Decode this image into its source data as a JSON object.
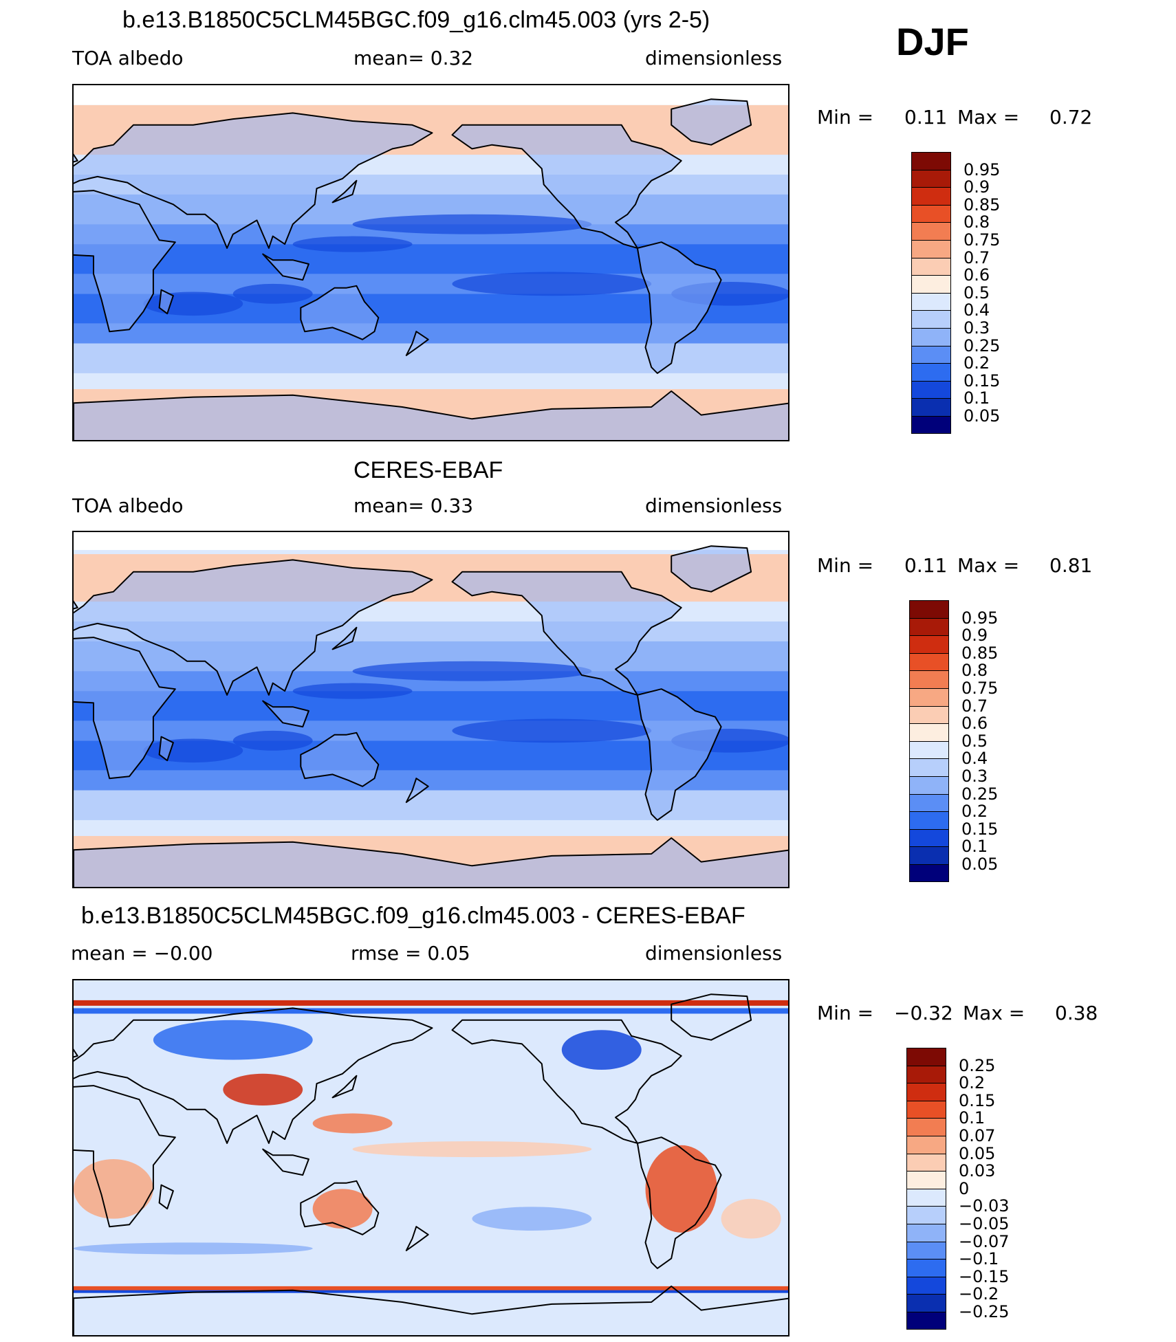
{
  "season": "DJF",
  "colors": {
    "land_outline": "#000000",
    "scale_full": [
      "#00007a",
      "#0a2fb0",
      "#1448dc",
      "#2d6cf0",
      "#5b8ef5",
      "#8fb3f8",
      "#b7cffb",
      "#dce9fd",
      "#fdeee0",
      "#fbcdb4",
      "#f7a883",
      "#f27d52",
      "#e85026",
      "#cf2d10",
      "#a81a08",
      "#7d0a04"
    ]
  },
  "panels": [
    {
      "title": "b.e13.B1850C5CLM45BGC.f09_g16.clm45.003 (yrs 2-5)",
      "left_text": "TOA  albedo",
      "center_text": "mean=     0.32",
      "right_text": "dimensionless",
      "min_label": "Min  =",
      "min_value": "0.11",
      "max_label": "Max  =",
      "max_value": "0.72",
      "map_kind": "model",
      "colorbar": {
        "labels": [
          "0.95",
          "0.9",
          "0.85",
          "0.8",
          "0.75",
          "0.7",
          "0.6",
          "0.5",
          "0.4",
          "0.3",
          "0.25",
          "0.2",
          "0.15",
          "0.1",
          "0.05"
        ],
        "colors": [
          "#7d0a04",
          "#a81a08",
          "#cf2d10",
          "#e85026",
          "#f27d52",
          "#f7a883",
          "#fbcdb4",
          "#fdeee0",
          "#dce9fd",
          "#b7cffb",
          "#8fb3f8",
          "#5b8ef5",
          "#2d6cf0",
          "#1448dc",
          "#0a2fb0",
          "#00007a"
        ]
      }
    },
    {
      "title": "CERES-EBAF",
      "left_text": "TOA  albedo",
      "center_text": "mean=     0.33",
      "right_text": "dimensionless",
      "min_label": "Min  =",
      "min_value": "0.11",
      "max_label": "Max  =",
      "max_value": "0.81",
      "map_kind": "obs",
      "colorbar": {
        "labels": [
          "0.95",
          "0.9",
          "0.85",
          "0.8",
          "0.75",
          "0.7",
          "0.6",
          "0.5",
          "0.4",
          "0.3",
          "0.25",
          "0.2",
          "0.15",
          "0.1",
          "0.05"
        ],
        "colors": [
          "#7d0a04",
          "#a81a08",
          "#cf2d10",
          "#e85026",
          "#f27d52",
          "#f7a883",
          "#fbcdb4",
          "#fdeee0",
          "#dce9fd",
          "#b7cffb",
          "#8fb3f8",
          "#5b8ef5",
          "#2d6cf0",
          "#1448dc",
          "#0a2fb0",
          "#00007a"
        ]
      }
    },
    {
      "title": "b.e13.B1850C5CLM45BGC.f09_g16.clm45.003 - CERES-EBAF",
      "left_text": "mean  =   −0.00",
      "center_text": "rmse  =     0.05",
      "right_text": "dimensionless",
      "min_label": "Min  =",
      "min_value": "−0.32",
      "max_label": "Max  =",
      "max_value": "0.38",
      "map_kind": "diff",
      "colorbar": {
        "labels": [
          "0.25",
          "0.2",
          "0.15",
          "0.1",
          "0.07",
          "0.05",
          "0.03",
          "0",
          "−0.03",
          "−0.05",
          "−0.07",
          "−0.1",
          "−0.15",
          "−0.2",
          "−0.25"
        ],
        "colors": [
          "#7d0a04",
          "#a81a08",
          "#cf2d10",
          "#e85026",
          "#f27d52",
          "#f7a883",
          "#fbcdb4",
          "#fdeee0",
          "#dce9fd",
          "#b7cffb",
          "#8fb3f8",
          "#5b8ef5",
          "#2d6cf0",
          "#1448dc",
          "#0a2fb0",
          "#00007a"
        ]
      }
    }
  ]
}
